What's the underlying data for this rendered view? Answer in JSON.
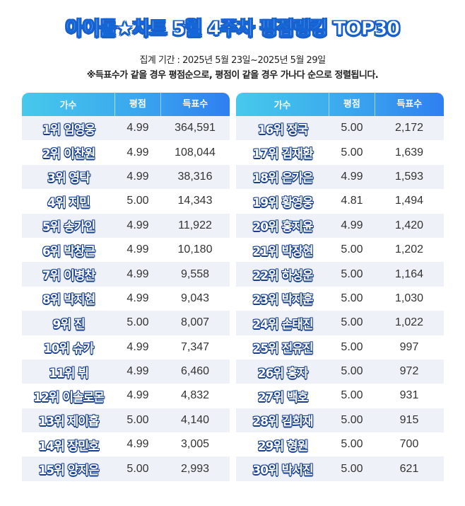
{
  "title": "아이돌★차트 5월 4주차 평점랭킹 TOP30",
  "period": "집계 기간 : 2025년 5월 23일~2025년 5월 29일",
  "note": "※득표수가 같을 경우 평점순으로, 평점이 같을 경우 가나다 순으로 정렬됩니다.",
  "headers": {
    "singer": "가수",
    "rating": "평점",
    "votes": "득표수"
  },
  "left_rows": [
    {
      "name": "1위 임영웅",
      "rating": "4.99",
      "votes": "364,591"
    },
    {
      "name": "2위 이찬원",
      "rating": "4.99",
      "votes": "108,044"
    },
    {
      "name": "3위 영탁",
      "rating": "4.99",
      "votes": "38,316"
    },
    {
      "name": "4위 지민",
      "rating": "5.00",
      "votes": "14,343"
    },
    {
      "name": "5위 송가인",
      "rating": "4.99",
      "votes": "11,922"
    },
    {
      "name": "6위 박창근",
      "rating": "4.99",
      "votes": "10,180"
    },
    {
      "name": "7위 이병찬",
      "rating": "4.99",
      "votes": "9,558"
    },
    {
      "name": "8위 박지현",
      "rating": "4.99",
      "votes": "9,043"
    },
    {
      "name": "9위 진",
      "rating": "5.00",
      "votes": "8,007"
    },
    {
      "name": "10위 슈가",
      "rating": "4.99",
      "votes": "7,347"
    },
    {
      "name": "11위 뷔",
      "rating": "4.99",
      "votes": "6,460"
    },
    {
      "name": "12위 이솔로몬",
      "rating": "4.99",
      "votes": "4,832"
    },
    {
      "name": "13위 제이홉",
      "rating": "5.00",
      "votes": "4,140"
    },
    {
      "name": "14위 장민호",
      "rating": "4.99",
      "votes": "3,005"
    },
    {
      "name": "15위 양지은",
      "rating": "5.00",
      "votes": "2,993"
    }
  ],
  "right_rows": [
    {
      "name": "16위 정국",
      "rating": "5.00",
      "votes": "2,172"
    },
    {
      "name": "17위 김재환",
      "rating": "5.00",
      "votes": "1,639"
    },
    {
      "name": "18위 은가은",
      "rating": "4.99",
      "votes": "1,593"
    },
    {
      "name": "19위 황영웅",
      "rating": "4.81",
      "votes": "1,494"
    },
    {
      "name": "20위 홍지윤",
      "rating": "4.99",
      "votes": "1,420"
    },
    {
      "name": "21위 박장현",
      "rating": "5.00",
      "votes": "1,202"
    },
    {
      "name": "22위 하성운",
      "rating": "5.00",
      "votes": "1,164"
    },
    {
      "name": "23위 박지훈",
      "rating": "5.00",
      "votes": "1,030"
    },
    {
      "name": "24위 손태진",
      "rating": "5.00",
      "votes": "1,022"
    },
    {
      "name": "25위 전유진",
      "rating": "5.00",
      "votes": "997"
    },
    {
      "name": "26위 홍자",
      "rating": "5.00",
      "votes": "972"
    },
    {
      "name": "27위 백호",
      "rating": "5.00",
      "votes": "931"
    },
    {
      "name": "28위 김희재",
      "rating": "5.00",
      "votes": "915"
    },
    {
      "name": "29위 형원",
      "rating": "5.00",
      "votes": "700"
    },
    {
      "name": "30위 박서진",
      "rating": "5.00",
      "votes": "621"
    }
  ]
}
